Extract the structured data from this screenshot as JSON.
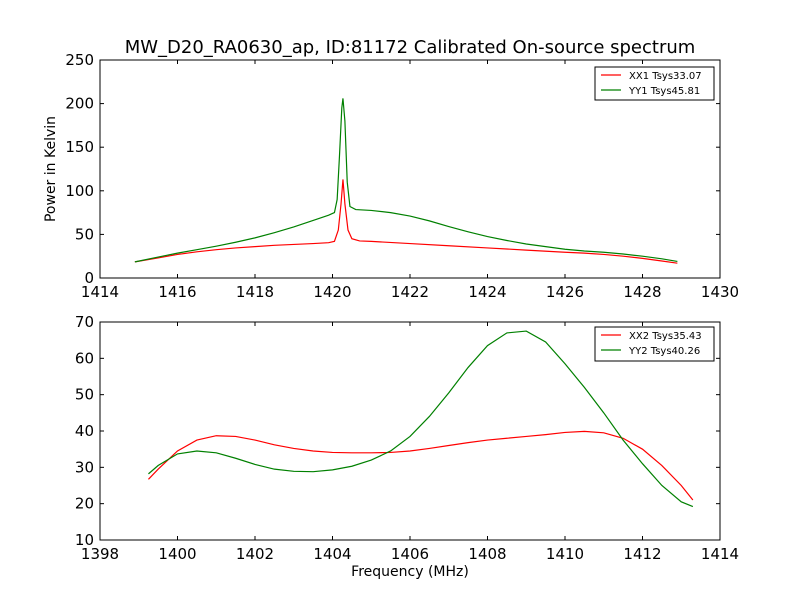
{
  "figure_title": "MW_D20_RA0630_ap, ID:81172 Calibrated On-source spectrum",
  "chart_data": [
    {
      "type": "line",
      "title": "MW_D20_RA0630_ap, ID:81172 Calibrated On-source spectrum",
      "xlabel": "",
      "ylabel": "Power in Kelvin",
      "xlim": [
        1414,
        1430
      ],
      "ylim": [
        0,
        250
      ],
      "xticks": [
        1414,
        1416,
        1418,
        1420,
        1422,
        1424,
        1426,
        1428,
        1430
      ],
      "yticks": [
        0,
        50,
        100,
        150,
        200,
        250
      ],
      "grid": false,
      "legend_position": "top-right",
      "series": [
        {
          "name": "XX1 Tsys33.07",
          "color": "#ff0000",
          "points": [
            [
              1414.9,
              18.5
            ],
            [
              1415.5,
              23
            ],
            [
              1416,
              27
            ],
            [
              1416.5,
              30
            ],
            [
              1417,
              32.5
            ],
            [
              1417.5,
              34.5
            ],
            [
              1418,
              36
            ],
            [
              1418.5,
              37.5
            ],
            [
              1419,
              38.5
            ],
            [
              1419.5,
              39.5
            ],
            [
              1419.9,
              40.5
            ],
            [
              1420.05,
              42
            ],
            [
              1420.15,
              55
            ],
            [
              1420.22,
              85
            ],
            [
              1420.27,
              113
            ],
            [
              1420.32,
              85
            ],
            [
              1420.4,
              55
            ],
            [
              1420.5,
              45
            ],
            [
              1420.7,
              42.5
            ],
            [
              1421,
              42
            ],
            [
              1422,
              39.5
            ],
            [
              1423,
              37
            ],
            [
              1424,
              34.5
            ],
            [
              1425,
              32
            ],
            [
              1426,
              29.5
            ],
            [
              1426.5,
              28.5
            ],
            [
              1427,
              27
            ],
            [
              1427.5,
              25
            ],
            [
              1428,
              22.5
            ],
            [
              1428.5,
              19.5
            ],
            [
              1428.9,
              17
            ]
          ]
        },
        {
          "name": "YY1 Tsys45.81",
          "color": "#008000",
          "points": [
            [
              1414.9,
              18.5
            ],
            [
              1415.5,
              24
            ],
            [
              1416,
              28.5
            ],
            [
              1416.5,
              32.5
            ],
            [
              1417,
              36.5
            ],
            [
              1417.5,
              41
            ],
            [
              1418,
              46
            ],
            [
              1418.5,
              52
            ],
            [
              1419,
              58.5
            ],
            [
              1419.5,
              66
            ],
            [
              1419.9,
              72
            ],
            [
              1420.05,
              75
            ],
            [
              1420.12,
              90
            ],
            [
              1420.18,
              140
            ],
            [
              1420.24,
              195
            ],
            [
              1420.27,
              206
            ],
            [
              1420.32,
              180
            ],
            [
              1420.38,
              110
            ],
            [
              1420.45,
              82
            ],
            [
              1420.6,
              78.5
            ],
            [
              1421,
              77.5
            ],
            [
              1421.5,
              75
            ],
            [
              1422,
              71
            ],
            [
              1422.5,
              65.5
            ],
            [
              1423,
              59
            ],
            [
              1423.5,
              53
            ],
            [
              1424,
              47.5
            ],
            [
              1424.5,
              43
            ],
            [
              1425,
              39
            ],
            [
              1425.5,
              36
            ],
            [
              1426,
              33
            ],
            [
              1426.5,
              31
            ],
            [
              1427,
              29.5
            ],
            [
              1427.5,
              27.5
            ],
            [
              1428,
              25
            ],
            [
              1428.5,
              22
            ],
            [
              1428.9,
              19
            ]
          ]
        }
      ]
    },
    {
      "type": "line",
      "title": "",
      "xlabel": "Frequency (MHz)",
      "ylabel": "",
      "xlim": [
        1398,
        1414
      ],
      "ylim": [
        10,
        70
      ],
      "xticks": [
        1398,
        1400,
        1402,
        1404,
        1406,
        1408,
        1410,
        1412,
        1414
      ],
      "yticks": [
        10,
        20,
        30,
        40,
        50,
        60,
        70
      ],
      "grid": false,
      "legend_position": "top-right",
      "series": [
        {
          "name": "XX2 Tsys35.43",
          "color": "#ff0000",
          "points": [
            [
              1399.25,
              26.7
            ],
            [
              1399.5,
              29.5
            ],
            [
              1400,
              34.5
            ],
            [
              1400.5,
              37.5
            ],
            [
              1401,
              38.7
            ],
            [
              1401.5,
              38.5
            ],
            [
              1402,
              37.5
            ],
            [
              1402.5,
              36.2
            ],
            [
              1403,
              35.2
            ],
            [
              1403.5,
              34.5
            ],
            [
              1404,
              34.1
            ],
            [
              1404.5,
              34
            ],
            [
              1405,
              34
            ],
            [
              1405.5,
              34.1
            ],
            [
              1406,
              34.5
            ],
            [
              1406.5,
              35.2
            ],
            [
              1407,
              36
            ],
            [
              1407.5,
              36.8
            ],
            [
              1408,
              37.5
            ],
            [
              1408.5,
              38
            ],
            [
              1409,
              38.5
            ],
            [
              1409.5,
              39
            ],
            [
              1410,
              39.6
            ],
            [
              1410.5,
              39.9
            ],
            [
              1411,
              39.5
            ],
            [
              1411.5,
              38
            ],
            [
              1412,
              35
            ],
            [
              1412.5,
              30.5
            ],
            [
              1413,
              25
            ],
            [
              1413.3,
              21
            ]
          ]
        },
        {
          "name": "YY2 Tsys40.26",
          "color": "#008000",
          "points": [
            [
              1399.25,
              28.2
            ],
            [
              1399.5,
              30.5
            ],
            [
              1400,
              33.7
            ],
            [
              1400.5,
              34.5
            ],
            [
              1401,
              34
            ],
            [
              1401.5,
              32.5
            ],
            [
              1402,
              30.8
            ],
            [
              1402.5,
              29.5
            ],
            [
              1403,
              28.9
            ],
            [
              1403.5,
              28.8
            ],
            [
              1404,
              29.3
            ],
            [
              1404.5,
              30.3
            ],
            [
              1405,
              32
            ],
            [
              1405.5,
              34.5
            ],
            [
              1406,
              38.5
            ],
            [
              1406.5,
              44
            ],
            [
              1407,
              50.5
            ],
            [
              1407.5,
              57.5
            ],
            [
              1408,
              63.5
            ],
            [
              1408.5,
              67
            ],
            [
              1409,
              67.5
            ],
            [
              1409.5,
              64.5
            ],
            [
              1410,
              58.5
            ],
            [
              1410.5,
              52
            ],
            [
              1411,
              45
            ],
            [
              1411.5,
              37.5
            ],
            [
              1412,
              31
            ],
            [
              1412.5,
              25
            ],
            [
              1413,
              20.5
            ],
            [
              1413.3,
              19.2
            ]
          ]
        }
      ]
    }
  ]
}
